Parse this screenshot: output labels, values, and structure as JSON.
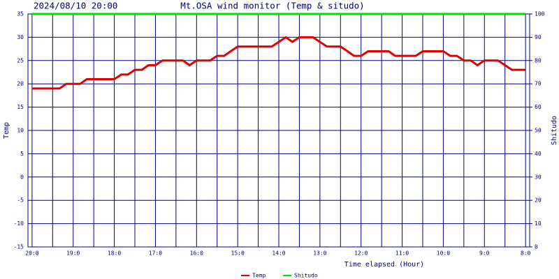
{
  "chart_data": {
    "type": "line",
    "title": "Mt.OSA wind monitor (Temp & situdo)",
    "subtitle": "2024/08/10 20:00",
    "x_label": "Time elapsed (Hour)",
    "y_label": "Temp",
    "y2_label": "Shitudo",
    "x": [
      20,
      19.83,
      19.67,
      19.5,
      19.33,
      19.17,
      19,
      18.83,
      18.67,
      18.5,
      18.33,
      18.17,
      18,
      17.83,
      17.67,
      17.5,
      17.33,
      17.17,
      17,
      16.83,
      16.67,
      16.5,
      16.33,
      16.17,
      16,
      15.83,
      15.67,
      15.5,
      15.33,
      15.17,
      15,
      14.83,
      14.67,
      14.5,
      14.33,
      14.17,
      14,
      13.83,
      13.67,
      13.5,
      13.33,
      13.17,
      13,
      12.83,
      12.67,
      12.5,
      12.33,
      12.17,
      12,
      11.83,
      11.67,
      11.5,
      11.33,
      11.17,
      11,
      10.83,
      10.67,
      10.5,
      10.33,
      10.17,
      10,
      9.83,
      9.67,
      9.5,
      9.33,
      9.17,
      9,
      8.83,
      8.67,
      8.5,
      8.33,
      8.17,
      8
    ],
    "series": [
      {
        "name": "Temp",
        "color": "#e00000",
        "axis": "y",
        "values": [
          19,
          19,
          19,
          19,
          19,
          20,
          20,
          20,
          21,
          21,
          21,
          21,
          21,
          22,
          22,
          23,
          23,
          24,
          24,
          25,
          25,
          25,
          25,
          24,
          25,
          25,
          25,
          26,
          26,
          27,
          28,
          28,
          28,
          28,
          28,
          28,
          29,
          30,
          29,
          30,
          30,
          30,
          29,
          28,
          28,
          28,
          27,
          26,
          26,
          27,
          27,
          27,
          27,
          26,
          26,
          26,
          26,
          27,
          27,
          27,
          27,
          26,
          26,
          25,
          25,
          24,
          25,
          25,
          25,
          24,
          23,
          23,
          23
        ]
      },
      {
        "name": "Shitudo",
        "color": "#00e000",
        "axis": "y2",
        "values": [
          100,
          100,
          100,
          100,
          100,
          100,
          100,
          100,
          100,
          100,
          100,
          100,
          100,
          100,
          100,
          100,
          100,
          100,
          100,
          100,
          100,
          100,
          100,
          100,
          100,
          100,
          100,
          100,
          100,
          100,
          100,
          100,
          100,
          100,
          100,
          100,
          100,
          100,
          100,
          100,
          100,
          100,
          100,
          100,
          100,
          100,
          100,
          100,
          100,
          100,
          100,
          100,
          100,
          100,
          100,
          100,
          100,
          100,
          100,
          100,
          100,
          100,
          100,
          100,
          100,
          100,
          100,
          100,
          100,
          100,
          100,
          100,
          100
        ]
      }
    ],
    "xlim": [
      20.1,
      7.9
    ],
    "xticks": [
      {
        "value": 20,
        "label": "20:0"
      },
      {
        "value": 19,
        "label": "19:0"
      },
      {
        "value": 18,
        "label": "18:0"
      },
      {
        "value": 17,
        "label": "17:0"
      },
      {
        "value": 16,
        "label": "16:0"
      },
      {
        "value": 15,
        "label": "15:0"
      },
      {
        "value": 14,
        "label": "14:0"
      },
      {
        "value": 13,
        "label": "13:0"
      },
      {
        "value": 12,
        "label": "12:0"
      },
      {
        "value": 11,
        "label": "11:0"
      },
      {
        "value": 10,
        "label": "10:0"
      },
      {
        "value": 9,
        "label": "9:0"
      },
      {
        "value": 8,
        "label": "8:0"
      }
    ],
    "ylim": [
      -15,
      35
    ],
    "yticks": [
      -15,
      -10,
      -5,
      0,
      5,
      10,
      15,
      20,
      25,
      30,
      35
    ],
    "y2lim": [
      0,
      100
    ],
    "y2ticks": [
      0,
      10,
      20,
      30,
      40,
      50,
      60,
      70,
      80,
      90,
      100
    ],
    "grid": true,
    "legend": "bottom"
  }
}
